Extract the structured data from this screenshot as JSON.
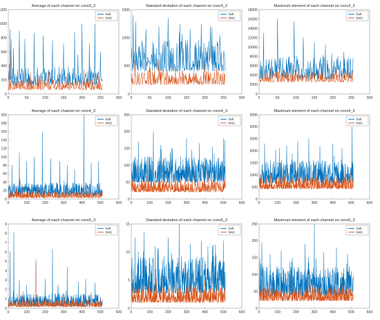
{
  "colors": {
    "bolt": "#0072BD",
    "bnt2": "#D95319"
  },
  "chart_data": [
    {
      "type": "line",
      "title": "Average of each channel on conv3_3",
      "xlim": [
        0,
        300
      ],
      "ylim": [
        0,
        1200
      ],
      "xticks": [
        0,
        50,
        100,
        150,
        200,
        250,
        300
      ],
      "yticks": [
        0,
        200,
        400,
        600,
        800,
        1000,
        1200
      ],
      "xtick_labels": [
        "0",
        "50",
        "100",
        "150",
        "200",
        "250",
        "300"
      ],
      "ytick_labels": [
        "0",
        "200",
        "400",
        "600",
        "800",
        "1000",
        "1200"
      ],
      "n": 256,
      "series": [
        {
          "name": "bolt",
          "base": 180,
          "noise": 120,
          "spikes": [
            [
              5,
              920
            ],
            [
              14,
              650
            ],
            [
              30,
              900
            ],
            [
              45,
              780
            ],
            [
              70,
              870
            ],
            [
              95,
              830
            ],
            [
              120,
              760
            ],
            [
              150,
              720
            ],
            [
              180,
              880
            ],
            [
              200,
              1000
            ],
            [
              220,
              720
            ],
            [
              235,
              1000
            ],
            [
              250,
              600
            ]
          ]
        },
        {
          "name": "bnt2",
          "base": 90,
          "noise": 70,
          "spikes": [
            [
              3,
              430
            ],
            [
              8,
              780
            ],
            [
              25,
              350
            ],
            [
              60,
              300
            ],
            [
              110,
              320
            ],
            [
              160,
              300
            ],
            [
              205,
              350
            ],
            [
              245,
              280
            ]
          ]
        }
      ]
    },
    {
      "type": "line",
      "title": "Standard deviation of each channel on conv3_3",
      "xlim": [
        0,
        300
      ],
      "ylim": [
        0,
        1500
      ],
      "xticks": [
        0,
        50,
        100,
        150,
        200,
        250,
        300
      ],
      "yticks": [
        0,
        500,
        1000,
        1500
      ],
      "xtick_labels": [
        "0",
        "50",
        "100",
        "150",
        "200",
        "250",
        "300"
      ],
      "ytick_labels": [
        "0",
        "500",
        "1000",
        "1500"
      ],
      "n": 256,
      "series": [
        {
          "name": "bolt",
          "base": 520,
          "noise": 260,
          "spikes": [
            [
              5,
              1400
            ],
            [
              12,
              1280
            ],
            [
              40,
              1150
            ],
            [
              75,
              1200
            ],
            [
              100,
              1350
            ],
            [
              130,
              1100
            ],
            [
              160,
              1150
            ],
            [
              190,
              1250
            ],
            [
              215,
              1200
            ],
            [
              240,
              1050
            ]
          ]
        },
        {
          "name": "bnt2",
          "base": 220,
          "noise": 120,
          "spikes": [
            [
              10,
              600
            ],
            [
              50,
              520
            ],
            [
              120,
              480
            ],
            [
              200,
              520
            ]
          ]
        }
      ]
    },
    {
      "type": "line",
      "title": "Maximum element of each channel on conv3_3",
      "xlim": [
        0,
        300
      ],
      "ylim": [
        0,
        18000
      ],
      "xticks": [
        0,
        50,
        100,
        150,
        200,
        250,
        300
      ],
      "yticks": [
        0,
        2000,
        4000,
        6000,
        8000,
        10000,
        12000,
        14000,
        16000,
        18000
      ],
      "xtick_labels": [
        "0",
        "50",
        "100",
        "150",
        "200",
        "250",
        "300"
      ],
      "ytick_labels": [
        "0",
        "2000",
        "4000",
        "6000",
        "8000",
        "10000",
        "12000",
        "14000",
        "16000",
        "18000"
      ],
      "n": 256,
      "series": [
        {
          "name": "bolt",
          "base": 4200,
          "noise": 2200,
          "spikes": [
            [
              12,
              13000
            ],
            [
              50,
              16000
            ],
            [
              95,
              15500
            ],
            [
              120,
              12000
            ],
            [
              150,
              11000
            ],
            [
              180,
              10500
            ],
            [
              230,
              9000
            ]
          ]
        },
        {
          "name": "bnt2",
          "base": 3000,
          "noise": 1000,
          "spikes": [
            [
              30,
              5500
            ],
            [
              100,
              5200
            ],
            [
              170,
              5000
            ],
            [
              240,
              5200
            ]
          ]
        }
      ]
    },
    {
      "type": "line",
      "title": "Average of each channel on conv4_3",
      "xlim": [
        0,
        600
      ],
      "ylim": [
        0,
        200
      ],
      "xticks": [
        0,
        100,
        200,
        300,
        400,
        500,
        600
      ],
      "yticks": [
        0,
        20,
        40,
        60,
        80,
        100,
        120,
        140,
        160,
        180,
        200
      ],
      "xtick_labels": [
        "0",
        "100",
        "200",
        "300",
        "400",
        "500",
        "600"
      ],
      "ytick_labels": [
        "0",
        "20",
        "40",
        "60",
        "80",
        "100",
        "120",
        "140",
        "160",
        "180",
        "200"
      ],
      "n": 512,
      "series": [
        {
          "name": "bolt",
          "base": 14,
          "noise": 14,
          "spikes": [
            [
              20,
              80
            ],
            [
              60,
              110
            ],
            [
              100,
              90
            ],
            [
              140,
              100
            ],
            [
              185,
              160
            ],
            [
              230,
              95
            ],
            [
              280,
              90
            ],
            [
              320,
              80
            ],
            [
              360,
              70
            ],
            [
              410,
              200
            ],
            [
              450,
              85
            ],
            [
              490,
              90
            ]
          ]
        },
        {
          "name": "bnt2",
          "base": 6,
          "noise": 7,
          "spikes": [
            [
              75,
              35
            ],
            [
              200,
              30
            ],
            [
              300,
              25
            ],
            [
              420,
              40
            ]
          ]
        }
      ]
    },
    {
      "type": "line",
      "title": "Standard deviation of each channel on conv4_3",
      "xlim": [
        0,
        600
      ],
      "ylim": [
        0,
        250
      ],
      "xticks": [
        0,
        100,
        200,
        300,
        400,
        500,
        600
      ],
      "yticks": [
        0,
        50,
        100,
        150,
        200,
        250
      ],
      "xtick_labels": [
        "0",
        "100",
        "200",
        "300",
        "400",
        "500",
        "600"
      ],
      "ytick_labels": [
        "0",
        "50",
        "100",
        "150",
        "200",
        "250"
      ],
      "n": 512,
      "series": [
        {
          "name": "bolt",
          "base": 65,
          "noise": 35,
          "spikes": [
            [
              40,
              170
            ],
            [
              120,
              200
            ],
            [
              160,
              160
            ],
            [
              220,
              150
            ],
            [
              300,
              180
            ],
            [
              370,
              165
            ],
            [
              440,
              155
            ],
            [
              500,
              180
            ]
          ]
        },
        {
          "name": "bnt2",
          "base": 28,
          "noise": 16,
          "spikes": [
            [
              80,
              70
            ],
            [
              250,
              60
            ],
            [
              420,
              65
            ]
          ]
        }
      ]
    },
    {
      "type": "line",
      "title": "Maximum element of each channel on conv4_3",
      "xlim": [
        0,
        600
      ],
      "ylim": [
        0,
        3500
      ],
      "xticks": [
        0,
        100,
        200,
        300,
        400,
        500,
        600
      ],
      "yticks": [
        0,
        500,
        1000,
        1500,
        2000,
        2500,
        3000,
        3500
      ],
      "xtick_labels": [
        "0",
        "100",
        "200",
        "300",
        "400",
        "500",
        "600"
      ],
      "ytick_labels": [
        "0",
        "500",
        "1000",
        "1500",
        "2000",
        "2500",
        "3000",
        "3500"
      ],
      "n": 512,
      "series": [
        {
          "name": "bolt",
          "base": 850,
          "noise": 450,
          "spikes": [
            [
              30,
              2300
            ],
            [
              90,
              2050
            ],
            [
              150,
              2200
            ],
            [
              210,
              2400
            ],
            [
              270,
              2500
            ],
            [
              330,
              2200
            ],
            [
              400,
              2300
            ],
            [
              450,
              2100
            ],
            [
              505,
              3000
            ]
          ]
        },
        {
          "name": "bnt2",
          "base": 520,
          "noise": 220,
          "spikes": [
            [
              60,
              1100
            ],
            [
              200,
              1050
            ],
            [
              350,
              1000
            ],
            [
              480,
              1100
            ]
          ]
        }
      ]
    },
    {
      "type": "line",
      "title": "Average of each channel on conv5_3",
      "xlim": [
        0,
        600
      ],
      "ylim": [
        0,
        9
      ],
      "xticks": [
        0,
        100,
        200,
        300,
        400,
        500,
        600
      ],
      "yticks": [
        0,
        1,
        2,
        3,
        4,
        5,
        6,
        7,
        8,
        9
      ],
      "xtick_labels": [
        "0",
        "100",
        "200",
        "300",
        "400",
        "500",
        "600"
      ],
      "ytick_labels": [
        "0",
        "1",
        "2",
        "3",
        "4",
        "5",
        "6",
        "7",
        "8",
        "9"
      ],
      "n": 512,
      "series": [
        {
          "name": "bolt",
          "base": 0.5,
          "noise": 0.6,
          "spikes": [
            [
              10,
              6.0
            ],
            [
              30,
              8.1
            ],
            [
              60,
              3.0
            ],
            [
              100,
              2.5
            ],
            [
              150,
              4.8
            ],
            [
              200,
              3.1
            ],
            [
              240,
              6.3
            ],
            [
              270,
              2.5
            ],
            [
              320,
              4.4
            ],
            [
              380,
              2.8
            ],
            [
              420,
              3.1
            ],
            [
              470,
              2.7
            ]
          ]
        },
        {
          "name": "bnt2",
          "base": 0.3,
          "noise": 0.35,
          "spikes": [
            [
              80,
              1.8
            ],
            [
              150,
              5.2
            ],
            [
              300,
              1.6
            ],
            [
              450,
              1.7
            ]
          ]
        }
      ]
    },
    {
      "type": "line",
      "title": "Standard deviation of each channel on conv5_3",
      "xlim": [
        0,
        600
      ],
      "ylim": [
        0,
        15
      ],
      "xticks": [
        0,
        100,
        200,
        300,
        400,
        500,
        600
      ],
      "yticks": [
        0,
        5,
        10,
        15
      ],
      "xtick_labels": [
        "0",
        "100",
        "200",
        "300",
        "400",
        "500",
        "600"
      ],
      "ytick_labels": [
        "0",
        "5",
        "10",
        "15"
      ],
      "n": 512,
      "series": [
        {
          "name": "bolt",
          "base": 4.0,
          "noise": 3.0,
          "spikes": [
            [
              20,
              12.5
            ],
            [
              70,
              13.5
            ],
            [
              130,
              11
            ],
            [
              200,
              12.5
            ],
            [
              260,
              15
            ],
            [
              320,
              11.5
            ],
            [
              380,
              12
            ],
            [
              440,
              11
            ],
            [
              500,
              12
            ]
          ]
        },
        {
          "name": "bnt2",
          "base": 1.6,
          "noise": 1.3,
          "spikes": [
            [
              90,
              5
            ],
            [
              230,
              4.5
            ],
            [
              400,
              4.8
            ]
          ]
        }
      ]
    },
    {
      "type": "line",
      "title": "Maximum element of each channel on conv5_3",
      "xlim": [
        0,
        600
      ],
      "ylim": [
        0,
        250
      ],
      "xticks": [
        0,
        100,
        200,
        300,
        400,
        500,
        600
      ],
      "yticks": [
        0,
        50,
        100,
        150,
        200,
        250
      ],
      "xtick_labels": [
        "0",
        "100",
        "200",
        "300",
        "400",
        "500",
        "600"
      ],
      "ytick_labels": [
        "0",
        "50",
        "100",
        "150",
        "200",
        "250"
      ],
      "n": 512,
      "series": [
        {
          "name": "bolt",
          "base": 55,
          "noise": 40,
          "spikes": [
            [
              15,
              195
            ],
            [
              60,
              160
            ],
            [
              120,
              170
            ],
            [
              180,
              150
            ],
            [
              250,
              190
            ],
            [
              300,
              250
            ],
            [
              350,
              165
            ],
            [
              420,
              180
            ],
            [
              480,
              160
            ]
          ]
        },
        {
          "name": "bnt2",
          "base": 30,
          "noise": 18,
          "spikes": [
            [
              100,
              75
            ],
            [
              280,
              70
            ],
            [
              450,
              80
            ]
          ]
        }
      ]
    }
  ]
}
